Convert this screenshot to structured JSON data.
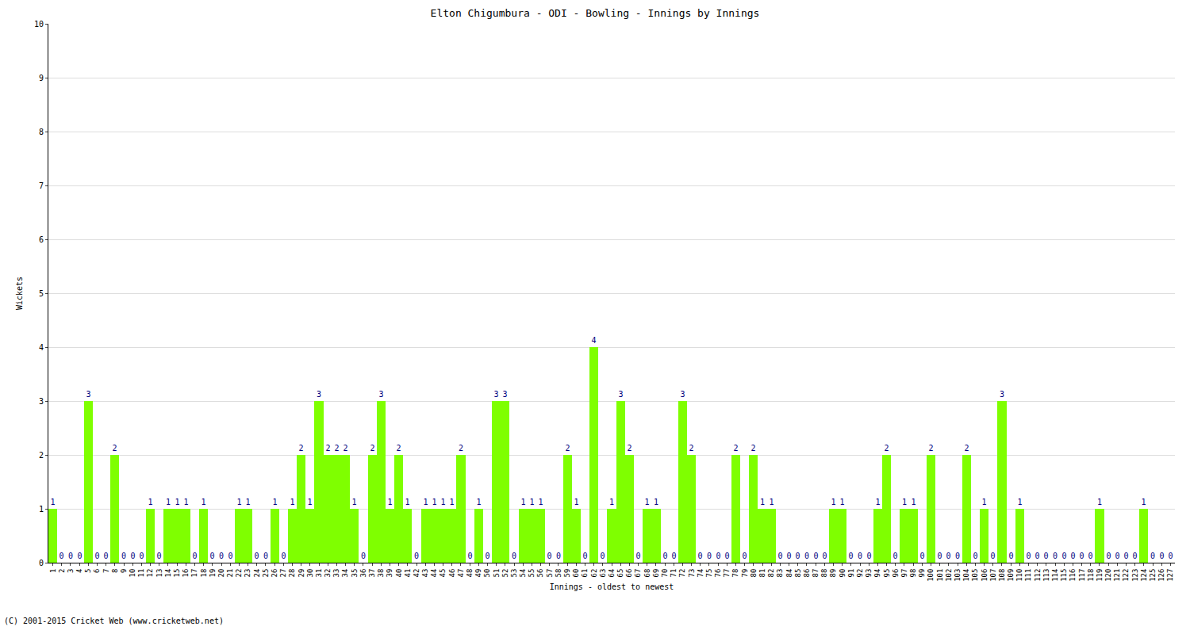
{
  "chart_data": {
    "type": "bar",
    "title": "Elton Chigumbura - ODI - Bowling - Innings by Innings",
    "x_label": "Innings - oldest to newest",
    "y_label": "Wickets",
    "annotations": [
      "(C) 2001-2015 Cricket Web (www.cricketweb.net)"
    ],
    "categories": [
      "1",
      "2",
      "3",
      "4",
      "5",
      "6",
      "7",
      "8",
      "9",
      "10",
      "11",
      "12",
      "13",
      "14",
      "15",
      "16",
      "17",
      "18",
      "19",
      "20",
      "21",
      "22",
      "23",
      "24",
      "25",
      "26",
      "27",
      "28",
      "29",
      "30",
      "31",
      "32",
      "33",
      "34",
      "35",
      "36",
      "37",
      "38",
      "39",
      "40",
      "41",
      "42",
      "43",
      "44",
      "45",
      "46",
      "47",
      "48",
      "49",
      "50",
      "51",
      "52",
      "53",
      "54",
      "55",
      "56",
      "57",
      "58",
      "59",
      "60",
      "61",
      "62",
      "63",
      "64",
      "65",
      "66",
      "67",
      "68",
      "69",
      "70",
      "71",
      "72",
      "73",
      "74",
      "75",
      "76",
      "77",
      "78",
      "79",
      "80",
      "81",
      "82",
      "83",
      "84",
      "85",
      "86",
      "87",
      "88",
      "89",
      "90",
      "91",
      "92",
      "93",
      "94",
      "95",
      "96",
      "97",
      "98",
      "99",
      "100",
      "101",
      "102",
      "103",
      "104",
      "105",
      "106",
      "107",
      "108",
      "109",
      "110",
      "111",
      "112",
      "113",
      "114",
      "115",
      "116",
      "117",
      "118",
      "119",
      "120",
      "121",
      "122",
      "123",
      "124",
      "125",
      "126",
      "127"
    ],
    "values": [
      1,
      0,
      0,
      0,
      3,
      0,
      0,
      2,
      0,
      0,
      0,
      1,
      0,
      1,
      1,
      1,
      0,
      1,
      0,
      0,
      0,
      1,
      1,
      0,
      0,
      1,
      0,
      1,
      2,
      1,
      3,
      2,
      2,
      2,
      1,
      0,
      2,
      3,
      1,
      2,
      1,
      0,
      1,
      1,
      1,
      1,
      2,
      0,
      1,
      0,
      3,
      3,
      0,
      1,
      1,
      1,
      0,
      0,
      2,
      1,
      0,
      4,
      0,
      1,
      3,
      2,
      0,
      1,
      1,
      0,
      0,
      3,
      2,
      0,
      0,
      0,
      0,
      2,
      0,
      2,
      1,
      1,
      0,
      0,
      0,
      0,
      0,
      0,
      1,
      1,
      0,
      0,
      0,
      1,
      2,
      0,
      1,
      1,
      0,
      2,
      0,
      0,
      0,
      2,
      0,
      1,
      0,
      3,
      0,
      1,
      0,
      0,
      0,
      0,
      0,
      0,
      0,
      0,
      1,
      0,
      0,
      0,
      0,
      1,
      0,
      0,
      0
    ],
    "color": "#7fff00",
    "ylim": [
      0,
      10
    ],
    "yticks": [
      0,
      1,
      2,
      3,
      4,
      5,
      6,
      7,
      8,
      9,
      10
    ],
    "grid": true,
    "data_labels": true
  }
}
